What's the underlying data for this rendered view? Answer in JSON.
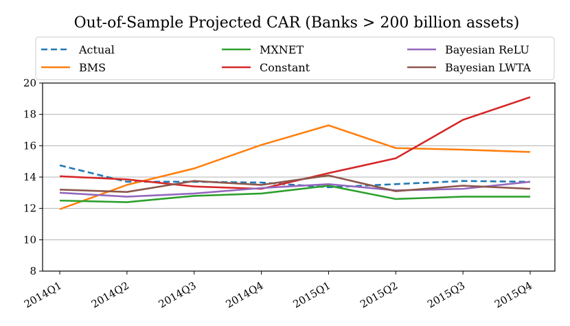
{
  "chart_data": {
    "type": "line",
    "title": "Out-of-Sample Projected CAR (Banks > 200 billion assets)",
    "xlabel": "",
    "ylabel": "",
    "categories": [
      "2014Q1",
      "2014Q2",
      "2014Q3",
      "2014Q4",
      "2015Q1",
      "2015Q2",
      "2015Q3",
      "2015Q4"
    ],
    "ylim": [
      8,
      20
    ],
    "yticks": [
      8,
      10,
      12,
      14,
      16,
      18,
      20
    ],
    "grid": "horizontal",
    "legend_position": "top",
    "series": [
      {
        "name": "Actual",
        "color": "#1f77b4",
        "dash": true,
        "values": [
          14.75,
          13.7,
          13.7,
          13.65,
          13.35,
          13.55,
          13.75,
          13.7
        ]
      },
      {
        "name": "BMS",
        "color": "#ff7f0e",
        "dash": false,
        "values": [
          11.95,
          13.5,
          14.55,
          16.05,
          17.3,
          15.85,
          15.75,
          15.6
        ]
      },
      {
        "name": "MXNET",
        "color": "#2ca02c",
        "dash": false,
        "values": [
          12.5,
          12.4,
          12.8,
          12.95,
          13.45,
          12.6,
          12.75,
          12.75
        ]
      },
      {
        "name": "Constant",
        "color": "#d62728",
        "dash": false,
        "values": [
          14.05,
          13.85,
          13.4,
          13.25,
          14.25,
          15.2,
          17.65,
          19.1
        ]
      },
      {
        "name": "Bayesian ReLU",
        "color": "#9467bd",
        "dash": false,
        "values": [
          13.0,
          12.75,
          12.95,
          13.3,
          13.55,
          13.15,
          13.25,
          13.7
        ]
      },
      {
        "name": "Bayesian LWTA",
        "color": "#8c564b",
        "dash": false,
        "values": [
          13.2,
          13.05,
          13.75,
          13.5,
          14.1,
          13.1,
          13.45,
          13.25
        ]
      }
    ]
  }
}
